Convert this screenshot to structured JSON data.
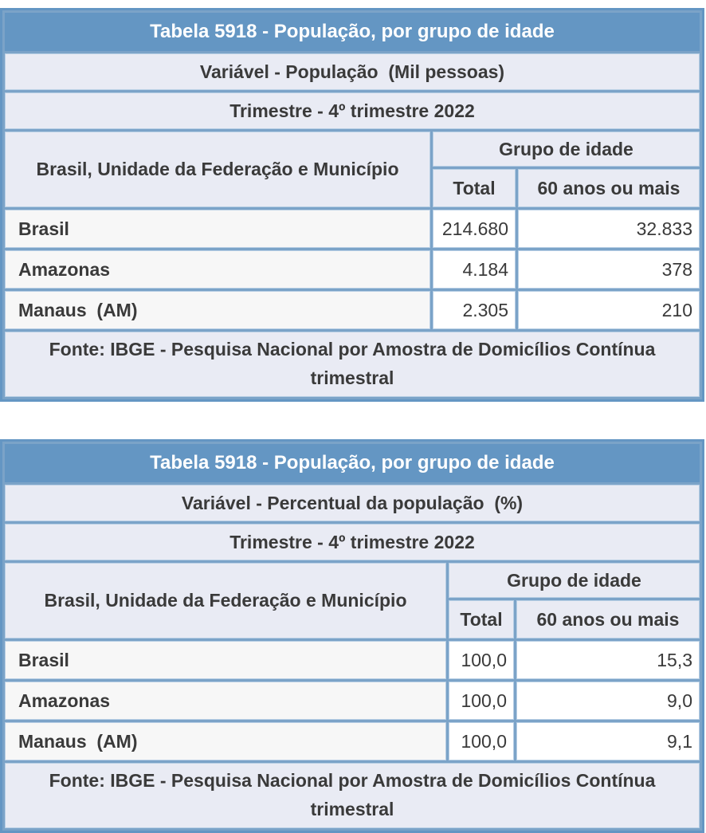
{
  "colors": {
    "header_bar_blue": "#6496c3",
    "grid_blue": "#7ba3c8",
    "info_bg": "#e9ebf4",
    "label_bg": "#f7f7f7",
    "text_dark": "#3a3a3a"
  },
  "tables": [
    {
      "title": "Tabela 5918 - População, por grupo de idade",
      "variable": "Variável - População  (Mil pessoas)",
      "quarter": "Trimestre - 4º trimestre 2022",
      "row_header": "Brasil, Unidade da Federação e Município",
      "group_header": "Grupo de idade",
      "col_total": "Total",
      "col_60plus": "60 anos ou mais",
      "rows": [
        {
          "label": "Brasil",
          "total": "214.680",
          "v60": "32.833"
        },
        {
          "label": "Amazonas",
          "total": "4.184",
          "v60": "378"
        },
        {
          "label": "Manaus  (AM)",
          "total": "2.305",
          "v60": "210"
        }
      ],
      "source": "Fonte: IBGE - Pesquisa Nacional por Amostra de Domicílios Contínua trimestral"
    },
    {
      "title": "Tabela 5918 - População, por grupo de idade",
      "variable": "Variável - Percentual da população  (%)",
      "quarter": "Trimestre - 4º trimestre 2022",
      "row_header": "Brasil, Unidade da Federação e Município",
      "group_header": "Grupo de idade",
      "col_total": "Total",
      "col_60plus": "60 anos ou mais",
      "rows": [
        {
          "label": "Brasil",
          "total": "100,0",
          "v60": "15,3"
        },
        {
          "label": "Amazonas",
          "total": "100,0",
          "v60": "9,0"
        },
        {
          "label": "Manaus  (AM)",
          "total": "100,0",
          "v60": "9,1"
        }
      ],
      "source": "Fonte: IBGE - Pesquisa Nacional por Amostra de Domicílios Contínua trimestral"
    }
  ]
}
